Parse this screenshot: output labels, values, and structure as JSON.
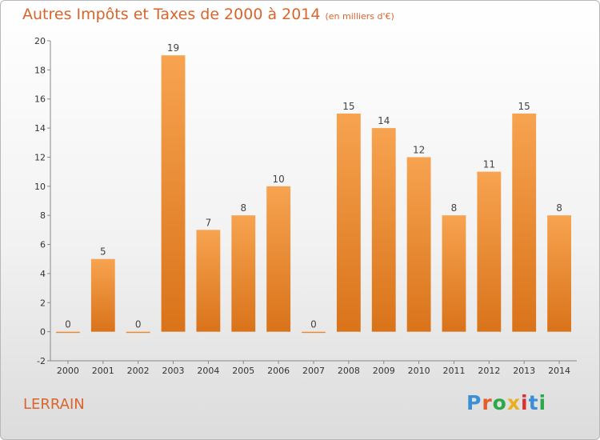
{
  "header": {
    "title": "Autres Impôts et Taxes de 2000 à 2014",
    "subtitle": "(en milliers d'€)"
  },
  "footer": {
    "town": "LERRAIN",
    "logo": "Proxiti"
  },
  "colors": {
    "bar_top": "#f7a350",
    "bar_bottom": "#d9731a",
    "title": "#d9642c"
  },
  "chart_data": {
    "type": "bar",
    "title": "Autres Impôts et Taxes de 2000 à 2014",
    "subtitle": "(en milliers d'€)",
    "categories": [
      "2000",
      "2001",
      "2002",
      "2003",
      "2004",
      "2005",
      "2006",
      "2007",
      "2008",
      "2009",
      "2010",
      "2011",
      "2012",
      "2013",
      "2014"
    ],
    "values": [
      0,
      5,
      0,
      19,
      7,
      8,
      10,
      0,
      15,
      14,
      12,
      8,
      11,
      15,
      8
    ],
    "xlabel": "",
    "ylabel": "",
    "ylim": [
      -2,
      20
    ],
    "yticks": [
      -2,
      0,
      2,
      4,
      6,
      8,
      10,
      12,
      14,
      16,
      18,
      20
    ],
    "grid": false,
    "legend": "none"
  }
}
